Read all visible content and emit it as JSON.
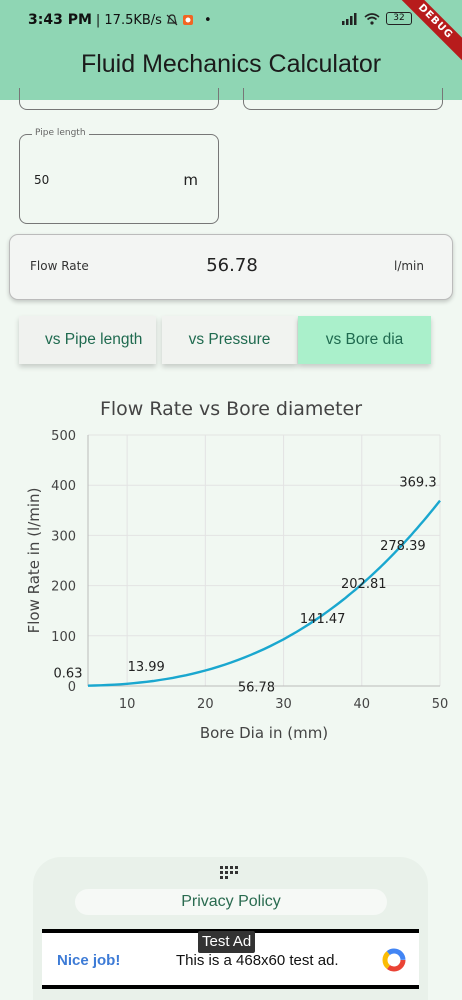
{
  "status_bar": {
    "time": "3:43 PM",
    "network_speed": "| 17.5KB/s",
    "battery": "32",
    "debug_banner": "DEBUG"
  },
  "app_bar": {
    "title": "Fluid Mechanics Calculator"
  },
  "pipe_length": {
    "label": "Pipe length",
    "value": "50",
    "unit": "m"
  },
  "result": {
    "label": "Flow Rate",
    "value": "56.78",
    "unit": "l/min"
  },
  "tabs": [
    {
      "label": "vs Pipe length",
      "selected": false
    },
    {
      "label": "vs Pressure",
      "selected": false
    },
    {
      "label": "vs Bore dia",
      "selected": true
    }
  ],
  "chart_data": {
    "type": "line",
    "title": "Flow Rate vs Bore diameter",
    "xlabel": "Bore Dia in (mm)",
    "ylabel": "Flow Rate in (l/min)",
    "xlim": [
      5,
      50
    ],
    "ylim": [
      0,
      500
    ],
    "x_ticks": [
      10,
      20,
      30,
      40,
      50
    ],
    "y_ticks": [
      0,
      100,
      200,
      300,
      400,
      500
    ],
    "grid": true,
    "color": "#1aa7cf",
    "points": [
      {
        "x": 5,
        "y": 0.63,
        "label": "0.63"
      },
      {
        "x": 15,
        "y": 13.99,
        "label": "13.99"
      },
      {
        "x": 25,
        "y": 56.78,
        "label": "56.78"
      },
      {
        "x": 35,
        "y": 141.47,
        "label": "141.47"
      },
      {
        "x": 40,
        "y": 202.81,
        "label": "202.81"
      },
      {
        "x": 45,
        "y": 278.39,
        "label": "278.39"
      },
      {
        "x": 50,
        "y": 369.3,
        "label": "369.3"
      }
    ]
  },
  "footer": {
    "privacy_label": "Privacy Policy"
  },
  "ad": {
    "tag": "Test Ad",
    "headline": "Nice job!",
    "text": "This is a 468x60 test ad."
  },
  "colors": {
    "app_bar": "#8fd6b4",
    "selected_tab": "#aaf0cb",
    "accent_text": "#1f6a4f",
    "chart_line": "#1aa7cf"
  }
}
